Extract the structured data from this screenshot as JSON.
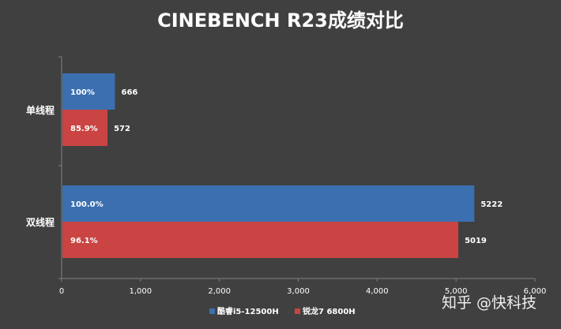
{
  "chart_data": {
    "type": "bar",
    "orientation": "horizontal",
    "title": "CINEBENCH R23成绩对比",
    "categories": [
      "单线程",
      "双线程"
    ],
    "series": [
      {
        "name": "酷睿i5-12500H",
        "color": "#3b6fb0",
        "values": [
          666,
          5222
        ],
        "data_labels": [
          "100%",
          "100.0%"
        ]
      },
      {
        "name": "锐龙7 6800H",
        "color": "#c94442",
        "values": [
          572,
          5019
        ],
        "data_labels": [
          "85.9%",
          "96.1%"
        ]
      }
    ],
    "xlim": [
      0,
      6000
    ],
    "x_ticks": [
      "0",
      "1,000",
      "2,000",
      "3,000",
      "4,000",
      "5,000",
      "6,000"
    ],
    "grid": false,
    "legend": "bottom"
  },
  "watermark": "知乎 @快科技",
  "colors": {
    "background": "#404040",
    "axis": "#7f7f7f",
    "text": "#ffffff"
  }
}
